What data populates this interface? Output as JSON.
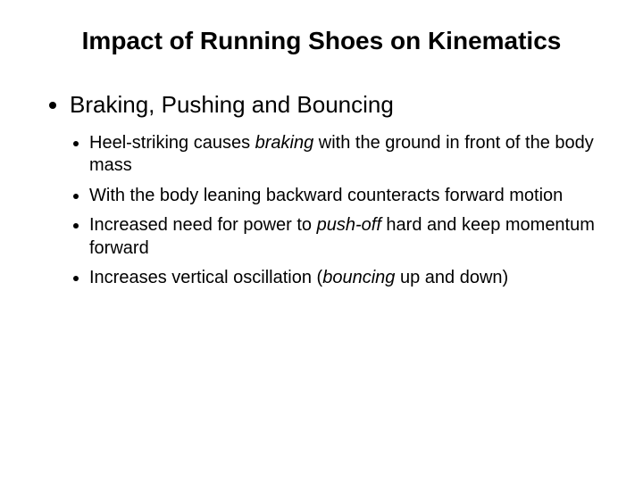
{
  "title": "Impact of Running Shoes on Kinematics",
  "heading": "Braking, Pushing and Bouncing",
  "bullets": {
    "b1_pre": "Heel-striking causes ",
    "b1_em": "braking",
    "b1_post": " with the ground in front of the body mass",
    "b2": "With the body leaning backward counteracts forward motion",
    "b3_pre": "Increased need for power to ",
    "b3_em": "push-off",
    "b3_post": " hard and keep momentum forward",
    "b4_pre": "Increases vertical oscillation (",
    "b4_em": "bouncing",
    "b4_post": " up and down)"
  },
  "style": {
    "background_color": "#ffffff",
    "text_color": "#000000",
    "title_fontsize": 28,
    "heading_fontsize": 26,
    "body_fontsize": 20,
    "font_family": "Arial"
  }
}
